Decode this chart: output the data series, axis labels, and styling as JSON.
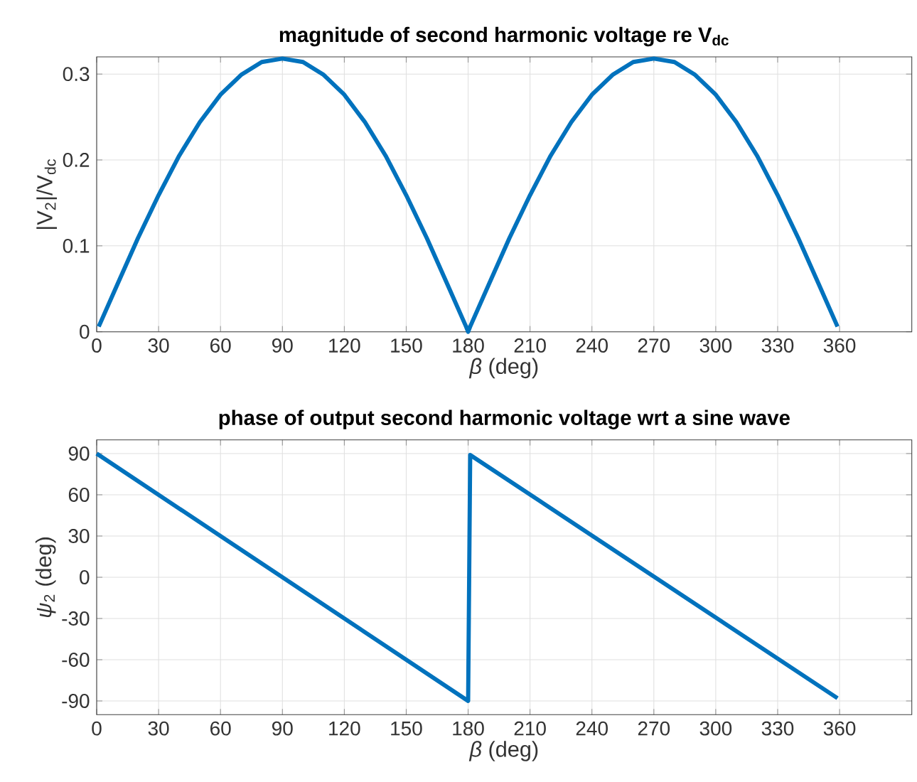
{
  "chart_data": [
    {
      "type": "line",
      "title": "magnitude of second harmonic voltage re V$_{dc}$",
      "xlabel": "*β* (deg)",
      "ylabel": "|V$_{2}$|/V$_{dc}$",
      "grid": true,
      "xlim": [
        0,
        395
      ],
      "ylim": [
        0,
        0.32
      ],
      "xticks": [
        0,
        30,
        60,
        90,
        120,
        150,
        180,
        210,
        240,
        270,
        300,
        330,
        360
      ],
      "yticks": [
        0,
        0.1,
        0.2,
        0.3
      ],
      "series": [
        {
          "color": "#0072bd",
          "x": [
            1,
            10,
            20,
            30,
            40,
            50,
            60,
            70,
            80,
            90,
            100,
            110,
            120,
            130,
            140,
            150,
            160,
            170,
            179,
            180,
            181,
            190,
            200,
            210,
            220,
            230,
            240,
            250,
            260,
            270,
            280,
            290,
            300,
            310,
            320,
            330,
            340,
            350,
            359
          ],
          "values": [
            0.006,
            0.055,
            0.109,
            0.159,
            0.205,
            0.244,
            0.276,
            0.299,
            0.314,
            0.318,
            0.314,
            0.299,
            0.276,
            0.244,
            0.205,
            0.159,
            0.109,
            0.055,
            0.006,
            0.0,
            0.006,
            0.055,
            0.109,
            0.159,
            0.205,
            0.244,
            0.276,
            0.299,
            0.314,
            0.318,
            0.314,
            0.299,
            0.276,
            0.244,
            0.205,
            0.159,
            0.109,
            0.055,
            0.006
          ]
        }
      ]
    },
    {
      "type": "line",
      "title": "phase of output second harmonic voltage wrt a sine wave",
      "xlabel": "*β* (deg)",
      "ylabel": "*ψ*$_{2}$ (deg)",
      "grid": true,
      "xlim": [
        0,
        395
      ],
      "ylim": [
        -100,
        100
      ],
      "xticks": [
        0,
        30,
        60,
        90,
        120,
        150,
        180,
        210,
        240,
        270,
        300,
        330,
        360
      ],
      "yticks": [
        -90,
        -60,
        -30,
        0,
        30,
        60,
        90
      ],
      "series": [
        {
          "color": "#0072bd",
          "x": [
            0,
            180,
            181,
            359
          ],
          "values": [
            90,
            -90,
            89,
            -88
          ]
        }
      ]
    }
  ]
}
